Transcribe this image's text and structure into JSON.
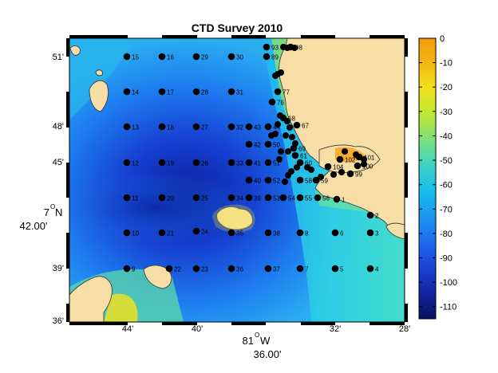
{
  "title": "CTD Survey 2010",
  "colorbar": {
    "ticks": [
      "0",
      "-10",
      "-20",
      "-30",
      "-40",
      "-50",
      "-60",
      "-70",
      "-80",
      "-90",
      "-100",
      "-110"
    ],
    "colors": [
      "#f2c66b",
      "#f59e0b",
      "#f5d70d",
      "#d8ec1c",
      "#9be85b",
      "#3fdbbb",
      "#17c2ea",
      "#1aa0f0",
      "#1e78f2",
      "#1f4fe6",
      "#1b2cc4",
      "#0a1a8a",
      "#050d5c"
    ]
  },
  "x_ticks": [
    "44'",
    "40'",
    "32'",
    "28'"
  ],
  "x_label_deg": "81",
  "x_label_dir": "W",
  "x_label_min": "36.00'",
  "y_ticks": [
    "51'",
    "48'",
    "45'",
    "39'",
    "36'"
  ],
  "y_label_deg": "7",
  "y_label_dir": "N",
  "y_label_min": "42.00'",
  "land_color": "#f7dea6",
  "stations": [
    {
      "id": "15"
    },
    {
      "id": "16"
    },
    {
      "id": "29"
    },
    {
      "id": "30"
    },
    {
      "id": "93"
    },
    {
      "id": "89"
    },
    {
      "id": "98"
    },
    {
      "id": "14"
    },
    {
      "id": "17"
    },
    {
      "id": "28"
    },
    {
      "id": "31"
    },
    {
      "id": "77"
    },
    {
      "id": "76"
    },
    {
      "id": "13"
    },
    {
      "id": "18"
    },
    {
      "id": "27"
    },
    {
      "id": "32"
    },
    {
      "id": "43"
    },
    {
      "id": "44"
    },
    {
      "id": "68"
    },
    {
      "id": "67"
    },
    {
      "id": "42"
    },
    {
      "id": "50"
    },
    {
      "id": "69"
    },
    {
      "id": "12"
    },
    {
      "id": "19"
    },
    {
      "id": "26"
    },
    {
      "id": "33"
    },
    {
      "id": "41"
    },
    {
      "id": "51"
    },
    {
      "id": "61"
    },
    {
      "id": "60"
    },
    {
      "id": "104"
    },
    {
      "id": "102"
    },
    {
      "id": "101"
    },
    {
      "id": "100"
    },
    {
      "id": "40"
    },
    {
      "id": "52"
    },
    {
      "id": "58"
    },
    {
      "id": "59"
    },
    {
      "id": "99"
    },
    {
      "id": "11"
    },
    {
      "id": "20"
    },
    {
      "id": "25"
    },
    {
      "id": "34"
    },
    {
      "id": "39"
    },
    {
      "id": "53"
    },
    {
      "id": "54"
    },
    {
      "id": "55"
    },
    {
      "id": "56"
    },
    {
      "id": "1"
    },
    {
      "id": "2"
    },
    {
      "id": "10"
    },
    {
      "id": "21"
    },
    {
      "id": "24"
    },
    {
      "id": "35"
    },
    {
      "id": "38"
    },
    {
      "id": "8"
    },
    {
      "id": "6"
    },
    {
      "id": "3"
    },
    {
      "id": "9"
    },
    {
      "id": "22"
    },
    {
      "id": "23"
    },
    {
      "id": "36"
    },
    {
      "id": "37"
    },
    {
      "id": "7"
    },
    {
      "id": "5"
    },
    {
      "id": "4"
    }
  ]
}
